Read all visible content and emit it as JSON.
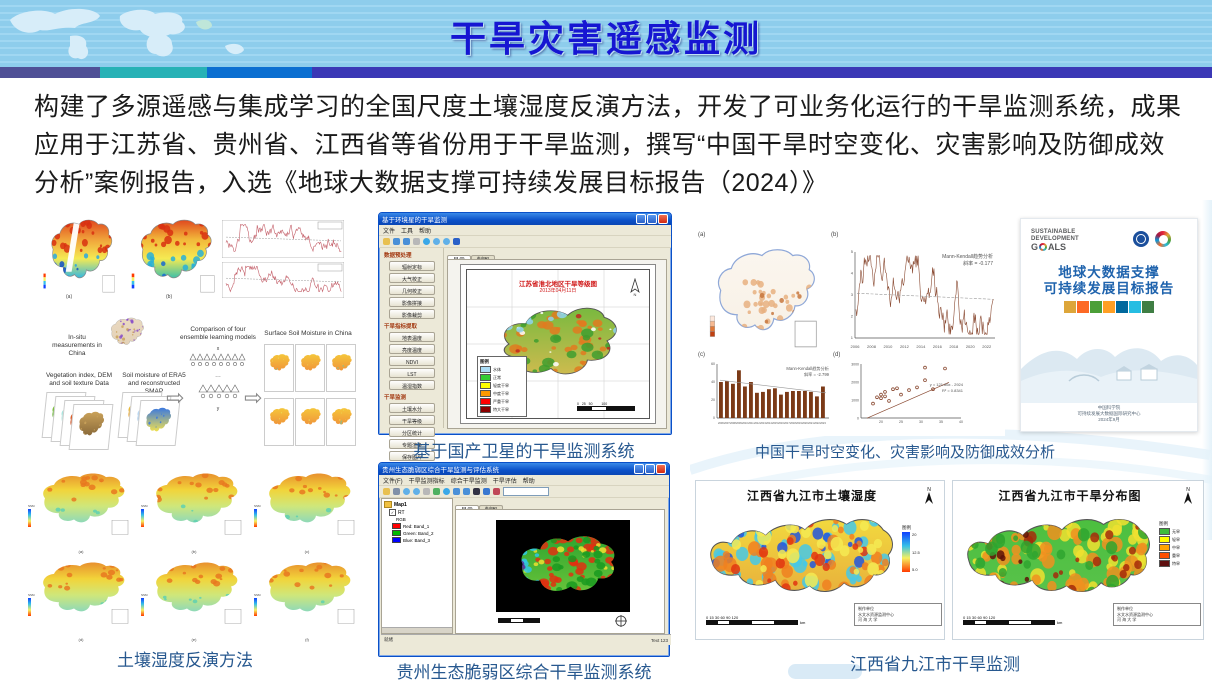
{
  "slide": {
    "title": "干旱灾害遥感监测",
    "intro": "构建了多源遥感与集成学习的全国尺度土壤湿度反演方法，开发了可业务化运行的干旱监测系统，成果应用于江苏省、贵州省、江西省等省份用于干旱监测，撰写“中国干旱时空变化、灾害影响及防御成效分析”案例报告，入选《地球大数据支撑可持续发展目标报告（2024）》"
  },
  "left": {
    "fig_maps": {
      "labels": [
        "(a)",
        "(b)"
      ]
    },
    "workflow": {
      "input1": "In-situ measurements in China",
      "input2": "Vegetation index, DEM and soil texture Data",
      "input3": "Soil moisture of ERA5 and reconstructed SMAP",
      "center_title": "Comparison of four ensemble learning models",
      "center_x": "x",
      "center_dots": "…",
      "center_y": "y",
      "output_title": "Surface Soil Moisture in China"
    },
    "ssm_grid": {
      "colorbar_label": "SSM",
      "labels": [
        "(a)",
        "(b)",
        "(c)",
        "(d)",
        "(e)",
        "(f)"
      ]
    },
    "caption": "土壤湿度反演方法"
  },
  "app1": {
    "window_title": "基于环境星的干旱监测",
    "window_buttons": [
      "minimize",
      "maximize",
      "close"
    ],
    "menus": [
      "文件",
      "工具",
      "帮助"
    ],
    "toolbar_icons": [
      "open-icon",
      "back-icon",
      "forward-icon",
      "pan-icon",
      "globe-icon",
      "zoom-in-icon",
      "zoom-out-icon",
      "help-icon"
    ],
    "tabs": [
      "显示",
      "制图"
    ],
    "sidebar": [
      {
        "title": "数据预处理",
        "buttons": [
          "辐射定标",
          "大气校正",
          "几何校正",
          "影像拼接",
          "影像裁剪"
        ]
      },
      {
        "title": "干旱指标提取",
        "buttons": [
          "地表温度",
          "亮度温度",
          "NDVI",
          "LST",
          "温湿指数"
        ]
      },
      {
        "title": "干旱监测",
        "buttons": [
          "土壤水分",
          "干旱等级",
          "分区统计",
          "专题渲染",
          "保存图片"
        ]
      }
    ],
    "map_title": "江苏省淮北地区干旱等级图",
    "map_date": "2013年04月11日",
    "legend_title": "图例",
    "legend": [
      {
        "label": "水体",
        "color": "#aadcf5"
      },
      {
        "label": "正常",
        "color": "#33cc33"
      },
      {
        "label": "轻度干旱",
        "color": "#ffff00"
      },
      {
        "label": "中度干旱",
        "color": "#ff9900"
      },
      {
        "label": "严重干旱",
        "color": "#ff0000"
      },
      {
        "label": "特大干旱",
        "color": "#8b0000"
      }
    ],
    "north_label": "N",
    "caption": "基于国产卫星的干旱监测系统"
  },
  "app2": {
    "window_title": "贵州生态脆弱区综合干旱监测与评估系统",
    "window_buttons": [
      "minimize",
      "maximize",
      "close"
    ],
    "menus": [
      "文件(F)",
      "干旱监测指标",
      "综合干旱监测",
      "干旱评估",
      "帮助"
    ],
    "toolbar_icons": [
      "open-icon",
      "save-icon",
      "zoom-in-icon",
      "zoom-out-icon",
      "pan-icon",
      "full-extent-icon",
      "globe-icon",
      "back-icon",
      "forward-icon",
      "select-icon",
      "identify-icon",
      "measure-icon"
    ],
    "tabs": [
      "显示",
      "制图"
    ],
    "layers_root": "Map1",
    "layer_name": "RT",
    "layer_mode": "RGB",
    "bands": [
      {
        "label": "Red:",
        "band": "Band_1",
        "color": "#ff0000"
      },
      {
        "label": "Green:",
        "band": "Band_2",
        "color": "#00bb00"
      },
      {
        "label": "Blue:",
        "band": "Band_3",
        "color": "#0000ff"
      }
    ],
    "status_left": "就绪",
    "status_right": "Text 123",
    "caption": "贵州生态脆弱区综合干旱监测系统"
  },
  "analysis": {
    "caption": "中国干旱时空变化、灾害影响及防御成效分析",
    "labels": [
      "(a)",
      "(b)",
      "(c)",
      "(d)"
    ]
  },
  "report": {
    "sdg_line1": "SUSTAINABLE",
    "sdg_line2": "DEVELOPMENT",
    "goals_g": "G",
    "goals_als": "ALS",
    "title1": "地球大数据支撑",
    "title2": "可持续发展目标报告",
    "sdg_palette": [
      "#dda63a",
      "#fd6925",
      "#4c9f38",
      "#ff9f24",
      "#00689d",
      "#26bde2",
      "#3f7e44"
    ],
    "footer": [
      "中国科学院",
      "可持续发展大数据国际研究中心",
      "2024年9月"
    ]
  },
  "jiujiang": {
    "caption": "江西省九江市干旱监测",
    "north_label": "N",
    "map1": {
      "title": "江西省九江市土壤湿度",
      "legend_title": "图例",
      "ticks": [
        "20",
        "12.5",
        "5.0"
      ]
    },
    "map2": {
      "title": "江西省九江市干旱分布图",
      "legend_title": "图例",
      "classes": [
        {
          "label": "无旱",
          "color": "#3dbb3d"
        },
        {
          "label": "轻旱",
          "color": "#ffff00"
        },
        {
          "label": "中旱",
          "color": "#ffa500"
        },
        {
          "label": "重旱",
          "color": "#ff4f00"
        },
        {
          "label": "特旱",
          "color": "#5e0f0f"
        }
      ]
    },
    "scale_ticks": "0  15 30    60    90   120",
    "scale_unit": "km",
    "attribution": [
      "制作单位",
      "水文水资源监测中心",
      "河  海  大  学"
    ]
  },
  "chart_data": [
    {
      "type": "line",
      "panel": "b",
      "x_start": 2006,
      "x_end": 2023,
      "annotation": [
        "Mann-Kendall趋势分析",
        "斜率 = -0.177"
      ],
      "color": "#8a4a32",
      "note": "dense noisy monthly series, values illegible in source"
    },
    {
      "type": "bar",
      "panel": "c",
      "categories": [
        2006,
        2007,
        2008,
        2009,
        2010,
        2011,
        2012,
        2013,
        2014,
        2015,
        2016,
        2017,
        2018,
        2019,
        2020,
        2021,
        2022,
        2023
      ],
      "values": [
        40,
        41,
        38,
        53,
        35,
        40,
        28,
        29,
        32,
        33,
        26,
        29,
        30,
        30,
        30,
        29,
        24,
        35
      ],
      "ylim": [
        0,
        60
      ],
      "annotation": [
        "Mann-Kendall趋势分析",
        "斜率 = -2.799"
      ],
      "color": "#7b3a17"
    },
    {
      "type": "scatter",
      "panel": "d",
      "points": [
        [
          18,
          800
        ],
        [
          19,
          1150
        ],
        [
          20,
          1300
        ],
        [
          20,
          1100
        ],
        [
          21,
          1450
        ],
        [
          21,
          1200
        ],
        [
          22,
          950
        ],
        [
          23,
          1600
        ],
        [
          24,
          1650
        ],
        [
          25,
          1300
        ],
        [
          27,
          1550
        ],
        [
          29,
          1700
        ],
        [
          31,
          2100
        ],
        [
          31,
          2800
        ],
        [
          33,
          1600
        ],
        [
          36,
          2750
        ]
      ],
      "xlim": [
        15,
        40
      ],
      "ylim": [
        0,
        3000
      ],
      "fit_label": [
        "y = 121.86x - 2924",
        "R² = 0.8341"
      ],
      "color": "#8a4a32"
    }
  ]
}
